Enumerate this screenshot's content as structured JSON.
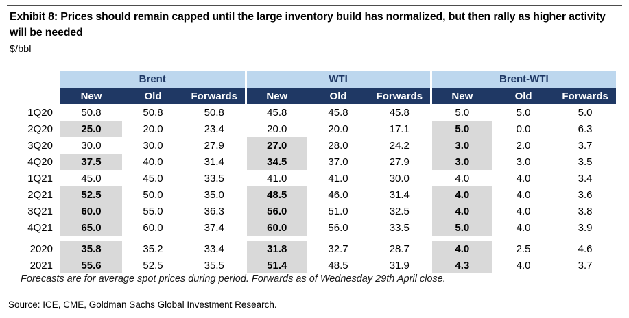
{
  "header": {
    "title": "Exhibit 8: Prices should remain capped until the large inventory build has normalized, but then rally as higher activity will be needed",
    "subtitle": "$/bbl"
  },
  "table": {
    "groups": [
      {
        "label": "Brent"
      },
      {
        "label": "WTI"
      },
      {
        "label": "Brent-WTI"
      }
    ],
    "col_headers": [
      "New",
      "Old",
      "Forwards"
    ],
    "rows": [
      {
        "label": "1Q20",
        "values": [
          "50.8",
          "50.8",
          "50.8",
          "45.8",
          "45.8",
          "45.8",
          "5.0",
          "5.0",
          "5.0"
        ],
        "highlighted": []
      },
      {
        "label": "2Q20",
        "values": [
          "25.0",
          "20.0",
          "23.4",
          "20.0",
          "20.0",
          "17.1",
          "5.0",
          "0.0",
          "6.3"
        ],
        "highlighted": [
          0,
          6
        ]
      },
      {
        "label": "3Q20",
        "values": [
          "30.0",
          "30.0",
          "27.9",
          "27.0",
          "28.0",
          "24.2",
          "3.0",
          "2.0",
          "3.7"
        ],
        "highlighted": [
          3,
          6
        ]
      },
      {
        "label": "4Q20",
        "values": [
          "37.5",
          "40.0",
          "31.4",
          "34.5",
          "37.0",
          "27.9",
          "3.0",
          "3.0",
          "3.5"
        ],
        "highlighted": [
          0,
          3,
          6
        ]
      },
      {
        "label": "1Q21",
        "values": [
          "45.0",
          "45.0",
          "33.5",
          "41.0",
          "41.0",
          "30.0",
          "4.0",
          "4.0",
          "3.4"
        ],
        "highlighted": []
      },
      {
        "label": "2Q21",
        "values": [
          "52.5",
          "50.0",
          "35.0",
          "48.5",
          "46.0",
          "31.4",
          "4.0",
          "4.0",
          "3.6"
        ],
        "highlighted": [
          0,
          3,
          6
        ]
      },
      {
        "label": "3Q21",
        "values": [
          "60.0",
          "55.0",
          "36.3",
          "56.0",
          "51.0",
          "32.5",
          "4.0",
          "4.0",
          "3.8"
        ],
        "highlighted": [
          0,
          3,
          6
        ]
      },
      {
        "label": "4Q21",
        "values": [
          "65.0",
          "60.0",
          "37.4",
          "60.0",
          "56.0",
          "33.5",
          "5.0",
          "4.0",
          "3.9"
        ],
        "highlighted": [
          0,
          3,
          6
        ]
      },
      {
        "label": "2020",
        "values": [
          "35.8",
          "35.2",
          "33.4",
          "31.8",
          "32.7",
          "28.7",
          "4.0",
          "2.5",
          "4.6"
        ],
        "highlighted": [
          0,
          3,
          6
        ],
        "section": "annual"
      },
      {
        "label": "2021",
        "values": [
          "55.6",
          "52.5",
          "35.5",
          "51.4",
          "48.5",
          "31.9",
          "4.3",
          "4.0",
          "3.7"
        ],
        "highlighted": [
          0,
          3,
          6
        ],
        "section": "annual"
      }
    ]
  },
  "footnote": "Forecasts are for average spot prices during period. Forwards as of Wednesday 29th April close.",
  "source": "Source: ICE, CME, Goldman Sachs Global Investment Research.",
  "colors": {
    "header_navy": "#1F3864",
    "header_light_blue": "#BDD7EE",
    "highlight_grey": "#D9D9D9"
  }
}
